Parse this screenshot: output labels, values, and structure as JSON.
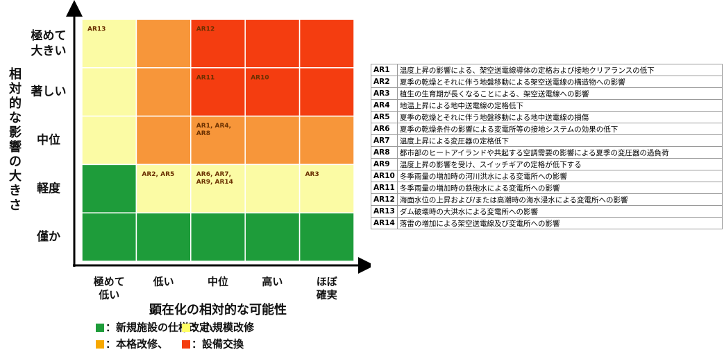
{
  "y_axis_label": [
    "相",
    "対",
    "的",
    "な",
    "影",
    "響",
    "の",
    "大",
    "き",
    "さ"
  ],
  "rows": [
    [
      "極めて",
      "大きい"
    ],
    [
      "著しい"
    ],
    [
      "中位"
    ],
    [
      "軽度"
    ],
    [
      "僅か"
    ]
  ],
  "columns": [
    [
      "極めて",
      "低い"
    ],
    [
      "低い"
    ],
    [
      "中位"
    ],
    [
      "高い"
    ],
    [
      "ほぼ",
      "確実"
    ]
  ],
  "x_axis_label": "顕在化の相対的な可能性",
  "grid": [
    [
      {
        "color": "#fbfba4"
      },
      {
        "color": "#f7963a"
      },
      {
        "color": "#f43d10",
        "label": [
          "AR12"
        ]
      },
      {
        "color": "#f43d10"
      },
      {
        "color": "#f43d10"
      }
    ],
    [
      {
        "color": "#fbfba4"
      },
      {
        "color": "#f7963a"
      },
      {
        "color": "#f43d10",
        "label": [
          "AR11"
        ]
      },
      {
        "color": "#f43d10",
        "label": [
          "AR10"
        ]
      },
      {
        "color": "#f43d10"
      }
    ],
    [
      {
        "color": "#fbfba4"
      },
      {
        "color": "#f7963a"
      },
      {
        "color": "#f7963a",
        "label": [
          "AR1, AR4,",
          "AR8"
        ]
      },
      {
        "color": "#f7963a"
      },
      {
        "color": "#f7963a"
      }
    ],
    [
      {
        "color": "#1e9c3a"
      },
      {
        "color": "#fbfba4",
        "label": [
          "AR2, AR5"
        ]
      },
      {
        "color": "#fbfba4",
        "label": [
          "AR6, AR7,",
          "AR9, AR14"
        ]
      },
      {
        "color": "#fbfba4"
      },
      {
        "color": "#fbfba4",
        "label": [
          "AR3"
        ]
      }
    ],
    [
      {
        "color": "#1e9c3a"
      },
      {
        "color": "#1e9c3a"
      },
      {
        "color": "#1e9c3a"
      },
      {
        "color": "#1e9c3a"
      },
      {
        "color": "#1e9c3a"
      }
    ]
  ],
  "cell_label_first": [
    "AR13"
  ],
  "legend": [
    [
      {
        "color": "#1e9c3a",
        "text": "：新規施設の仕様改定、"
      },
      {
        "color": "#ffff66",
        "text": "：小規模改修"
      }
    ],
    [
      {
        "color": "#f7a800",
        "text": "：本格改修、"
      },
      {
        "color": "#f43d10",
        "text": "：設備交換"
      }
    ]
  ],
  "table": [
    [
      "AR1",
      "温度上昇の影響による、架空送電線導体の定格および接地クリアランスの低下"
    ],
    [
      "AR2",
      "夏季の乾燥とそれに伴う地盤移動による架空送電線の構造物への影響"
    ],
    [
      "AR3",
      "植生の生育期が長くなることによる、架空送電線への影響"
    ],
    [
      "AR4",
      "地温上昇による地中送電線の定格低下"
    ],
    [
      "AR5",
      "夏季の乾燥とそれに伴う地盤移動による地中送電線の損傷"
    ],
    [
      "AR6",
      "夏季の乾燥条件の影響による変電所等の接地システムの効果の低下"
    ],
    [
      "AR7",
      "温度上昇による変圧器の定格低下"
    ],
    [
      "AR8",
      "都市部のヒートアイランドや共起する空調需要の影響による夏季の変圧器の過負荷"
    ],
    [
      "AR9",
      "温度上昇の影響を受け、スイッチギアの定格が低下する"
    ],
    [
      "AR10",
      "冬季雨量の増加時の河川洪水による変電所への影響"
    ],
    [
      "AR11",
      "冬季雨量の増加時の鉄砲水による変電所への影響"
    ],
    [
      "AR12",
      "海面水位の上昇および/または高潮時の海水浸水による変電所への影響"
    ],
    [
      "AR13",
      "ダム破壊時の大洪水による変電所への影響"
    ],
    [
      "AR14",
      "落雷の増加による架空送電線及び変電所への影響"
    ]
  ]
}
